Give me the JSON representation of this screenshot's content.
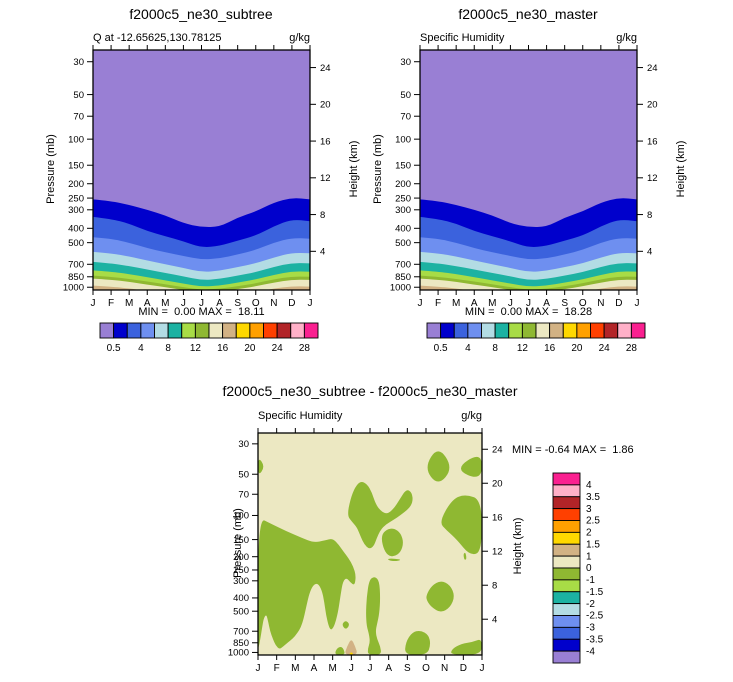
{
  "panels": {
    "subtree": {
      "title": "f2000c5_ne30_subtree",
      "subtitle_left": "Q at -12.65625,130.78125",
      "units": "g/kg",
      "stats": "MIN =  0.00 MAX =  18.11"
    },
    "master": {
      "title": "f2000c5_ne30_master",
      "subtitle_left": "Specific Humidity",
      "units": "g/kg",
      "stats": "MIN =  0.00 MAX =  18.28"
    },
    "diff": {
      "title": "f2000c5_ne30_subtree - f2000c5_ne30_master",
      "subtitle_left": "Specific Humidity",
      "units": "g/kg",
      "stats": "MIN = -0.64 MAX =  1.86"
    }
  },
  "axes": {
    "pressure_label": "Pressure (mb)",
    "height_label": "Height (km)",
    "pressure_ticks": [
      30,
      50,
      70,
      100,
      150,
      200,
      250,
      300,
      400,
      500,
      700,
      850,
      1000
    ],
    "height_ticks": [
      4,
      8,
      12,
      16,
      20,
      24
    ],
    "month_labels": [
      "J",
      "F",
      "M",
      "A",
      "M",
      "J",
      "J",
      "A",
      "S",
      "O",
      "N",
      "D",
      "J"
    ]
  },
  "chart_data": {
    "type": "filled-contour",
    "description": "Annual cycle (month vs log-pressure) of specific humidity g/kg; two model runs plus their difference",
    "x_categories": [
      "J",
      "F",
      "M",
      "A",
      "M",
      "J",
      "J",
      "A",
      "S",
      "O",
      "N",
      "D",
      "J"
    ],
    "y_axis": {
      "label": "Pressure (mb)",
      "scale": "log",
      "top_mb": 25,
      "bottom_mb": 1044
    },
    "y2_axis": {
      "label": "Height (km)",
      "ticks_km": [
        4,
        8,
        12,
        16,
        20,
        24
      ]
    },
    "palette_hex": [
      "#997fd4",
      "#0000cc",
      "#3b62dd",
      "#6e8ff0",
      "#b3dce4",
      "#1cb2a2",
      "#a8dc46",
      "#8fb832",
      "#ece8c2",
      "#d2b284",
      "#ffd800",
      "#ffa000",
      "#ff4000",
      "#b22428",
      "#ffb0c8",
      "#fa2090"
    ],
    "palette_names": [
      "purple",
      "navy",
      "blue",
      "cornflower",
      "pale-cyan",
      "teal",
      "light-green",
      "olive-green",
      "cream",
      "tan",
      "yellow",
      "orange",
      "red-orange",
      "dark-red",
      "pink",
      "magenta"
    ],
    "top_colorbar": {
      "orientation": "horizontal",
      "boundaries": [
        0.5,
        2,
        4,
        6,
        8,
        10,
        12,
        14,
        16,
        18,
        20,
        22,
        24,
        26,
        28
      ],
      "tick_labels": [
        "0.5",
        "4",
        "8",
        "12",
        "16",
        "20",
        "24",
        "28"
      ],
      "labeled_boundary_index": [
        1,
        3,
        5,
        7,
        9,
        11,
        13,
        15
      ]
    },
    "top_panels": {
      "min_max": [
        {
          "name": "subtree",
          "min": 0.0,
          "max": 18.11
        },
        {
          "name": "master",
          "min": 0.0,
          "max": 18.28
        }
      ],
      "note": "both panels visually identical at this scale; shared contour-band boundary pressures below",
      "contour_levels_gkg": [
        0.5,
        2,
        4,
        6,
        8,
        10,
        12,
        14,
        16
      ],
      "contour_pressure_mb_by_month": {
        "0.5": [
          255,
          262,
          278,
          300,
          327,
          370,
          393,
          391,
          338,
          308,
          268,
          248,
          255
        ],
        "2": [
          335,
          346,
          372,
          418,
          452,
          490,
          540,
          527,
          484,
          448,
          388,
          348,
          358
        ],
        "4": [
          460,
          470,
          500,
          545,
          580,
          615,
          650,
          640,
          600,
          560,
          500,
          465,
          470
        ],
        "6": [
          577,
          590,
          620,
          660,
          700,
          740,
          790,
          775,
          730,
          690,
          630,
          585,
          590
        ],
        "8": [
          674,
          690,
          720,
          760,
          800,
          845,
          895,
          880,
          835,
          790,
          730,
          685,
          690
        ],
        "10": [
          770,
          785,
          815,
          855,
          900,
          945,
          990,
          975,
          930,
          885,
          825,
          780,
          785
        ],
        "12": [
          834,
          850,
          880,
          915,
          955,
          1000,
          1040,
          1025,
          985,
          940,
          885,
          845,
          850
        ],
        "14": [
          875,
          890,
          920,
          960,
          1000,
          1045,
          1080,
          1070,
          1030,
          985,
          930,
          888,
          892
        ],
        "16": [
          975,
          990,
          1020,
          1060,
          1100,
          1140,
          1170,
          1160,
          1120,
          1075,
          1020,
          985,
          990
        ]
      }
    },
    "diff_panel": {
      "min": -0.64,
      "max": 1.86,
      "colorbar": {
        "orientation": "vertical",
        "labels_top_to_bottom": [
          "4",
          "3.5",
          "3",
          "2.5",
          "2",
          "1.5",
          "1",
          "0",
          "-1",
          "-1.5",
          "-2",
          "-2.5",
          "-3",
          "-3.5",
          "-4"
        ]
      },
      "background_band": "0 to 1 (cream)",
      "green_band_value": "-1 to 0",
      "tan_band_value": "1 to 1.5",
      "yellow_band_value": "1.5 to 2",
      "green_regions_mi_p": [
        [
          [
            0,
            37
          ],
          [
            0.38,
            44
          ],
          [
            0,
            52
          ]
        ],
        [
          [
            0,
            103
          ],
          [
            0.7,
            115
          ],
          [
            1.5,
            130
          ],
          [
            2.3,
            145
          ],
          [
            3.0,
            158
          ],
          [
            3.6,
            152
          ],
          [
            4.0,
            147
          ],
          [
            4.35,
            165
          ],
          [
            4.6,
            185
          ],
          [
            4.85,
            205
          ],
          [
            5.1,
            235
          ],
          [
            5.25,
            275
          ],
          [
            5.18,
            325
          ],
          [
            4.95,
            308
          ],
          [
            4.75,
            285
          ],
          [
            4.55,
            302
          ],
          [
            4.42,
            385
          ],
          [
            4.3,
            495
          ],
          [
            4.18,
            585
          ],
          [
            4.05,
            655
          ],
          [
            3.9,
            690
          ],
          [
            3.77,
            635
          ],
          [
            3.65,
            535
          ],
          [
            3.55,
            430
          ],
          [
            3.42,
            350
          ],
          [
            3.2,
            312
          ],
          [
            2.95,
            322
          ],
          [
            2.75,
            372
          ],
          [
            2.6,
            455
          ],
          [
            2.45,
            565
          ],
          [
            2.3,
            655
          ],
          [
            2.1,
            725
          ],
          [
            1.85,
            795
          ],
          [
            1.6,
            845
          ],
          [
            1.35,
            905
          ],
          [
            1.15,
            950
          ],
          [
            0.95,
            888
          ],
          [
            0.8,
            798
          ],
          [
            0.65,
            700
          ],
          [
            0.55,
            600
          ],
          [
            0.45,
            525
          ],
          [
            0.3,
            565
          ],
          [
            0.2,
            685
          ],
          [
            0.12,
            805
          ],
          [
            0.05,
            900
          ],
          [
            0,
            940
          ]
        ],
        [
          [
            4.78,
            100
          ],
          [
            4.95,
            76
          ],
          [
            5.2,
            62
          ],
          [
            5.5,
            56
          ],
          [
            5.85,
            59
          ],
          [
            6.1,
            68
          ],
          [
            6.3,
            82
          ],
          [
            6.55,
            92
          ],
          [
            6.9,
            98
          ],
          [
            7.25,
            90
          ],
          [
            7.6,
            76
          ],
          [
            7.95,
            64
          ],
          [
            8.25,
            68
          ],
          [
            8.3,
            80
          ],
          [
            8.05,
            90
          ],
          [
            7.65,
            99
          ],
          [
            7.25,
            108
          ],
          [
            6.85,
            116
          ],
          [
            6.55,
            128
          ],
          [
            6.35,
            148
          ],
          [
            6.2,
            168
          ],
          [
            5.95,
            176
          ],
          [
            5.7,
            163
          ],
          [
            5.5,
            143
          ],
          [
            5.3,
            122
          ],
          [
            5.05,
            112
          ]
        ],
        [
          [
            6.6,
            140
          ],
          [
            6.9,
            126
          ],
          [
            7.3,
            124
          ],
          [
            7.65,
            135
          ],
          [
            7.8,
            158
          ],
          [
            7.65,
            185
          ],
          [
            7.3,
            200
          ],
          [
            6.95,
            196
          ],
          [
            6.7,
            172
          ]
        ],
        [
          [
            6.95,
            206
          ],
          [
            7.35,
            207
          ],
          [
            7.7,
            211
          ],
          [
            7.35,
            216
          ],
          [
            7.0,
            213
          ]
        ],
        [
          [
            8.9,
            45
          ],
          [
            9.65,
            31
          ],
          [
            10.45,
            45
          ],
          [
            9.65,
            61
          ]
        ],
        [
          [
            10.5,
            46
          ],
          [
            12,
            34
          ],
          [
            12,
            56
          ]
        ],
        [
          [
            9.7,
            112
          ],
          [
            10.4,
            76
          ],
          [
            11.1,
            70
          ],
          [
            12,
            77
          ],
          [
            12,
            185
          ],
          [
            11.35,
            196
          ],
          [
            10.65,
            150
          ],
          [
            10.1,
            128
          ]
        ],
        [
          [
            11.0,
            190
          ],
          [
            11.12,
            186
          ],
          [
            11.18,
            208
          ],
          [
            11.05,
            212
          ]
        ],
        [
          [
            9.0,
            385
          ],
          [
            9.3,
            325
          ],
          [
            9.8,
            298
          ],
          [
            10.3,
            322
          ],
          [
            10.55,
            388
          ],
          [
            10.3,
            468
          ],
          [
            9.8,
            515
          ],
          [
            9.3,
            468
          ],
          [
            9.05,
            420
          ]
        ],
        [
          [
            7.85,
            1044
          ],
          [
            7.92,
            840
          ],
          [
            8.25,
            715
          ],
          [
            8.7,
            688
          ],
          [
            9.15,
            745
          ],
          [
            9.25,
            880
          ],
          [
            9.05,
            1044
          ]
        ],
        [
          [
            10.3,
            1044
          ],
          [
            10.4,
            940
          ],
          [
            10.9,
            865
          ],
          [
            11.5,
            838
          ],
          [
            12,
            790
          ],
          [
            12,
            1044
          ]
        ],
        [
          [
            5.95,
            295
          ],
          [
            6.25,
            278
          ],
          [
            6.5,
            300
          ],
          [
            6.55,
            400
          ],
          [
            6.5,
            520
          ],
          [
            6.38,
            620
          ],
          [
            6.3,
            700
          ],
          [
            6.38,
            800
          ],
          [
            6.55,
            900
          ],
          [
            6.62,
            1044
          ],
          [
            5.9,
            1044
          ],
          [
            5.88,
            940
          ],
          [
            6.0,
            840
          ],
          [
            5.95,
            740
          ],
          [
            5.82,
            640
          ],
          [
            5.78,
            520
          ],
          [
            5.82,
            400
          ]
        ],
        [
          [
            4.48,
            625
          ],
          [
            4.7,
            582
          ],
          [
            4.93,
            625
          ],
          [
            4.7,
            685
          ]
        ],
        [
          [
            4.1,
            1044
          ],
          [
            4.2,
            940
          ],
          [
            4.45,
            900
          ],
          [
            4.62,
            960
          ],
          [
            4.65,
            1044
          ]
        ]
      ],
      "tan_regions_mi_p": [
        [
          [
            4.62,
            1044
          ],
          [
            4.78,
            900
          ],
          [
            5.0,
            790
          ],
          [
            5.2,
            900
          ],
          [
            5.35,
            1044
          ]
        ]
      ],
      "yellow_regions_mi_p": [
        [
          [
            4.86,
            1044
          ],
          [
            5.0,
            985
          ],
          [
            5.14,
            1044
          ]
        ]
      ]
    }
  }
}
